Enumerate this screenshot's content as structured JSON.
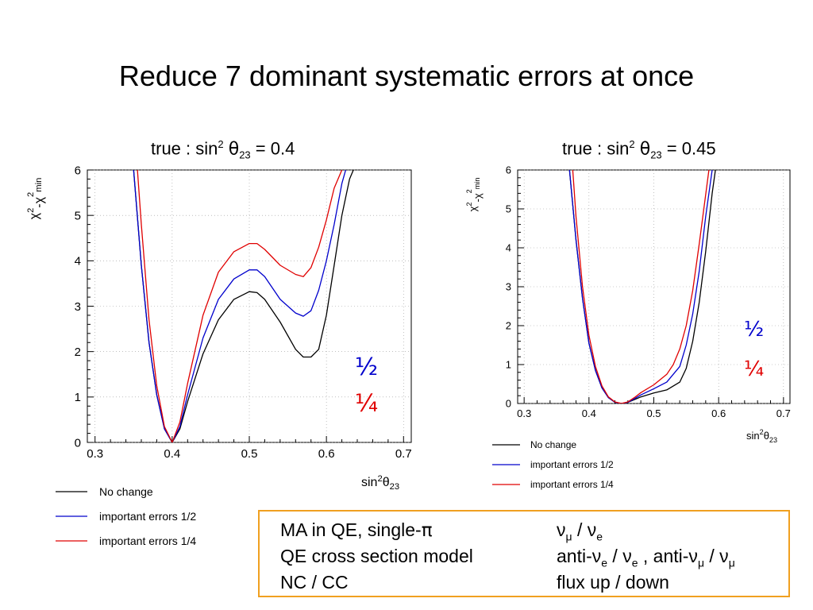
{
  "title": "Reduce 7 dominant systematic errors at once",
  "panels": [
    {
      "title_prefix": "true : sin",
      "title_sup": "2",
      "title_theta": "θ",
      "title_sub": "23",
      "title_value": " = 0.4"
    },
    {
      "title_prefix": "true : sin",
      "title_sup": "2",
      "title_theta": "θ",
      "title_sub": "23",
      "title_value": " = 0.45"
    }
  ],
  "annotations": {
    "half": "½",
    "quarter": "¼"
  },
  "colors": {
    "black": "#000000",
    "blue": "#0000cc",
    "red": "#e00000",
    "box_border": "#f0a020"
  },
  "chart_data": [
    {
      "type": "line",
      "title": "true : sin² θ23 = 0.4",
      "xlabel": "sin²θ23",
      "ylabel": "χ²-χ²min",
      "xlim": [
        0.29,
        0.71
      ],
      "ylim": [
        0,
        6
      ],
      "xticks": [
        0.3,
        0.4,
        0.5,
        0.6,
        0.7
      ],
      "yticks": [
        0,
        1,
        2,
        3,
        4,
        5,
        6
      ],
      "legend_position": "below",
      "series": [
        {
          "name": "No change",
          "color": "#000000",
          "x": [
            0.35,
            0.36,
            0.37,
            0.38,
            0.39,
            0.4,
            0.41,
            0.42,
            0.44,
            0.46,
            0.48,
            0.5,
            0.51,
            0.52,
            0.54,
            0.56,
            0.57,
            0.58,
            0.59,
            0.6,
            0.61,
            0.62,
            0.63,
            0.635
          ],
          "y": [
            6.0,
            3.9,
            2.2,
            1.05,
            0.3,
            0.0,
            0.3,
            0.9,
            1.95,
            2.7,
            3.15,
            3.32,
            3.3,
            3.15,
            2.65,
            2.05,
            1.88,
            1.88,
            2.05,
            2.8,
            3.9,
            5.0,
            5.8,
            6.0
          ]
        },
        {
          "name": "important errors  1/2",
          "color": "#0000cc",
          "x": [
            0.35,
            0.36,
            0.37,
            0.38,
            0.39,
            0.4,
            0.41,
            0.42,
            0.44,
            0.46,
            0.48,
            0.5,
            0.51,
            0.52,
            0.54,
            0.56,
            0.57,
            0.58,
            0.59,
            0.6,
            0.61,
            0.62,
            0.625
          ],
          "y": [
            6.0,
            3.9,
            2.2,
            1.05,
            0.3,
            0.0,
            0.35,
            1.05,
            2.3,
            3.15,
            3.6,
            3.8,
            3.8,
            3.65,
            3.15,
            2.85,
            2.78,
            2.9,
            3.35,
            4.0,
            4.8,
            5.7,
            6.0
          ]
        },
        {
          "name": "important errors  1/4",
          "color": "#e00000",
          "x": [
            0.355,
            0.36,
            0.37,
            0.38,
            0.39,
            0.4,
            0.41,
            0.42,
            0.44,
            0.46,
            0.48,
            0.5,
            0.51,
            0.52,
            0.54,
            0.56,
            0.57,
            0.58,
            0.59,
            0.6,
            0.61,
            0.62
          ],
          "y": [
            6.0,
            4.8,
            2.7,
            1.25,
            0.35,
            0.0,
            0.45,
            1.3,
            2.8,
            3.75,
            4.2,
            4.38,
            4.38,
            4.25,
            3.9,
            3.7,
            3.65,
            3.85,
            4.3,
            4.9,
            5.6,
            6.0
          ]
        }
      ]
    },
    {
      "type": "line",
      "title": "true : sin² θ23 = 0.45",
      "xlabel": "sin²θ23",
      "ylabel": "χ²-χ²min",
      "xlim": [
        0.29,
        0.71
      ],
      "ylim": [
        0,
        6
      ],
      "xticks": [
        0.3,
        0.4,
        0.5,
        0.6,
        0.7
      ],
      "yticks": [
        0,
        1,
        2,
        3,
        4,
        5,
        6
      ],
      "legend_position": "below",
      "series": [
        {
          "name": "No change",
          "color": "#000000",
          "x": [
            0.37,
            0.38,
            0.39,
            0.4,
            0.41,
            0.42,
            0.43,
            0.44,
            0.45,
            0.46,
            0.47,
            0.48,
            0.5,
            0.52,
            0.54,
            0.55,
            0.56,
            0.57,
            0.58,
            0.59,
            0.595
          ],
          "y": [
            6.0,
            4.2,
            2.7,
            1.55,
            0.85,
            0.4,
            0.15,
            0.03,
            0.0,
            0.03,
            0.1,
            0.17,
            0.27,
            0.35,
            0.55,
            0.9,
            1.6,
            2.6,
            3.9,
            5.4,
            6.0
          ]
        },
        {
          "name": "important errors  1/2",
          "color": "#0000cc",
          "x": [
            0.37,
            0.38,
            0.39,
            0.4,
            0.41,
            0.42,
            0.43,
            0.44,
            0.45,
            0.46,
            0.47,
            0.48,
            0.5,
            0.52,
            0.54,
            0.55,
            0.56,
            0.57,
            0.58,
            0.59
          ],
          "y": [
            6.0,
            4.2,
            2.7,
            1.55,
            0.85,
            0.4,
            0.15,
            0.03,
            0.0,
            0.03,
            0.12,
            0.22,
            0.38,
            0.55,
            0.95,
            1.5,
            2.3,
            3.4,
            4.8,
            6.0
          ]
        },
        {
          "name": "important errors  1/4",
          "color": "#e00000",
          "x": [
            0.375,
            0.38,
            0.39,
            0.4,
            0.41,
            0.42,
            0.43,
            0.44,
            0.45,
            0.46,
            0.47,
            0.48,
            0.5,
            0.52,
            0.53,
            0.54,
            0.55,
            0.56,
            0.57,
            0.585
          ],
          "y": [
            6.0,
            4.8,
            3.0,
            1.75,
            0.95,
            0.45,
            0.17,
            0.04,
            0.0,
            0.04,
            0.15,
            0.28,
            0.48,
            0.75,
            1.0,
            1.4,
            2.0,
            2.9,
            4.1,
            6.0
          ]
        }
      ]
    }
  ],
  "info_box": {
    "rows": [
      {
        "left": "MA in QE, single-",
        "left_greek": "π",
        "right": "ν",
        "right_sub": "μ",
        "right_rest": " / ν",
        "right_sub2": "e",
        "right_tail": "",
        "right_sub3": ""
      },
      {
        "left": "QE cross section model",
        "left_greek": "",
        "right": "anti-ν",
        "right_sub": "e",
        "right_rest": " / ν",
        "right_sub2": "e",
        "right_tail": " , anti-ν",
        "right_sub3": "μ",
        "right_tail2": " / ν",
        "right_sub4": "μ"
      },
      {
        "left": "NC / CC",
        "left_greek": "",
        "right": "flux up / down",
        "right_sub": "",
        "right_rest": "",
        "right_sub2": "",
        "right_tail": "",
        "right_sub3": ""
      }
    ]
  }
}
